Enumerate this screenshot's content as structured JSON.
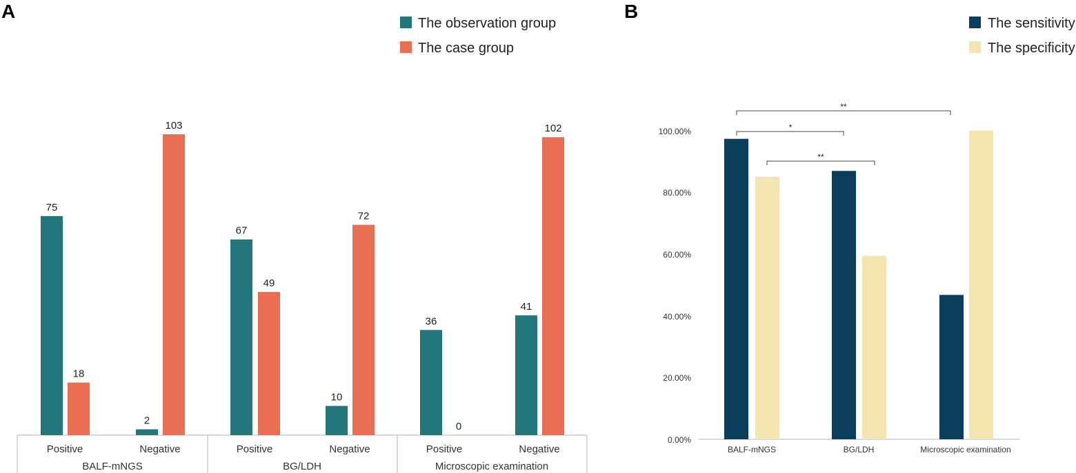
{
  "colors": {
    "observation": "#22777a",
    "case": "#e86f52",
    "sensitivity": "#0b3d5c",
    "specificity": "#f3e4b0",
    "axis": "#cccccc",
    "gridText": "#333333"
  },
  "chart_data": [
    {
      "panel": "A",
      "type": "bar",
      "title": "",
      "legend": [
        "The observation group",
        "The case group"
      ],
      "legend_position": "top-right",
      "groups": [
        "BALF-mNGS",
        "BG/LDH",
        "Microscopic examination"
      ],
      "categories": [
        "Positive",
        "Negative"
      ],
      "series": [
        {
          "name": "The observation group",
          "values": [
            [
              75,
              2
            ],
            [
              67,
              10
            ],
            [
              36,
              41
            ]
          ]
        },
        {
          "name": "The case group",
          "values": [
            [
              18,
              103
            ],
            [
              49,
              72
            ],
            [
              0,
              102
            ]
          ]
        }
      ],
      "ylim": [
        0,
        103
      ],
      "xlabel": "",
      "ylabel": "",
      "grid": false
    },
    {
      "panel": "B",
      "type": "bar",
      "title": "",
      "legend": [
        "The sensitivity",
        "The specificity"
      ],
      "legend_position": "top-right",
      "categories": [
        "BALF-mNGS",
        "BG/LDH",
        "Microscopic examination"
      ],
      "series": [
        {
          "name": "The sensitivity",
          "values": [
            97.4,
            87.0,
            46.8
          ]
        },
        {
          "name": "The specificity",
          "values": [
            85.1,
            59.5,
            100.0
          ]
        }
      ],
      "yticks": [
        "0.00%",
        "20.00%",
        "40.00%",
        "60.00%",
        "80.00%",
        "100.00%"
      ],
      "ylim": [
        0,
        100
      ],
      "xlabel": "",
      "ylabel": "",
      "grid": false,
      "significance": [
        {
          "from": "BALF-mNGS sensitivity",
          "to": "Microscopic examination sensitivity",
          "label": "**"
        },
        {
          "from": "BALF-mNGS sensitivity",
          "to": "BG/LDH sensitivity",
          "label": "*"
        },
        {
          "from": "BALF-mNGS specificity",
          "to": "BG/LDH specificity",
          "label": "**"
        }
      ]
    }
  ]
}
